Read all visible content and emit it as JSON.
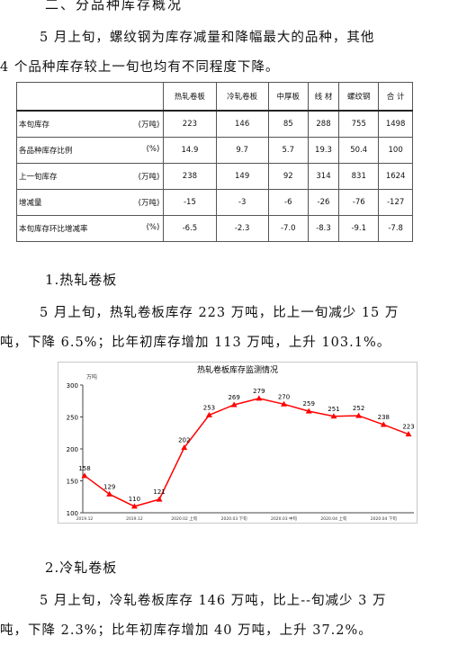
{
  "section_heading": "二、分品种库存概况",
  "intro": {
    "line1": "5 月上旬，螺纹钢为库存减量和降幅最大的品种，其他",
    "line2": "4 个品种库存较上一旬也均有不同程度下降。"
  },
  "table": {
    "headers": [
      "",
      "热轧卷板",
      "冷轧卷板",
      "中厚板",
      "线 材",
      "螺纹钢",
      "合 计"
    ],
    "rows": [
      {
        "label": "本旬库存",
        "unit": "(万吨)",
        "values": [
          "223",
          "146",
          "85",
          "288",
          "755",
          "1498"
        ]
      },
      {
        "label": "各品种库存比例",
        "unit": "(%)",
        "values": [
          "14.9",
          "9.7",
          "5.7",
          "19.3",
          "50.4",
          "100"
        ]
      },
      {
        "label": "上一旬库存",
        "unit": "(万吨)",
        "values": [
          "238",
          "149",
          "92",
          "314",
          "831",
          "1624"
        ]
      },
      {
        "label": "增减量",
        "unit": "(万吨)",
        "values": [
          "-15",
          "-3",
          "-6",
          "-26",
          "-76",
          "-127"
        ]
      },
      {
        "label": "本旬库存环比增减率",
        "unit": "(%)",
        "values": [
          "-6.5",
          "-2.3",
          "-7.0",
          "-8.3",
          "-9.1",
          "-7.8"
        ]
      }
    ]
  },
  "section1": {
    "title": "1.热轧卷板",
    "line1": "5 月上旬，热轧卷板库存 223 万吨，比上一旬减少 15 万",
    "line2": "吨，下降 6.5%；比年初库存增加 113 万吨，上升 103.1%。"
  },
  "chart_data": {
    "type": "line",
    "title": "热轧卷板库存监测情况",
    "ylabel": "万吨",
    "xlabel": "",
    "ylim": [
      100,
      300
    ],
    "yticks": [
      100,
      150,
      200,
      250,
      300
    ],
    "x": [
      "2019.12",
      "",
      "2019.12",
      "",
      "2020.02 上旬",
      "",
      "2020.03 下旬",
      "",
      "2020.03 中旬",
      "",
      "2020.04 上旬",
      "",
      "2020.04 下旬",
      ""
    ],
    "series": [
      {
        "values": [
          158,
          129,
          110,
          121,
          202,
          253,
          269,
          279,
          270,
          259,
          251,
          252,
          238,
          223
        ],
        "color": "#ff0000"
      }
    ],
    "grid": false,
    "legend": "none"
  },
  "section2": {
    "title": "2.冷轧卷板",
    "line1": "5 月上旬，冷轧卷板库存 146 万吨，比上--旬减少 3 万",
    "line2": "吨，下降 2.3%；比年初库存增加 40 万吨，上升 37.2%。"
  }
}
